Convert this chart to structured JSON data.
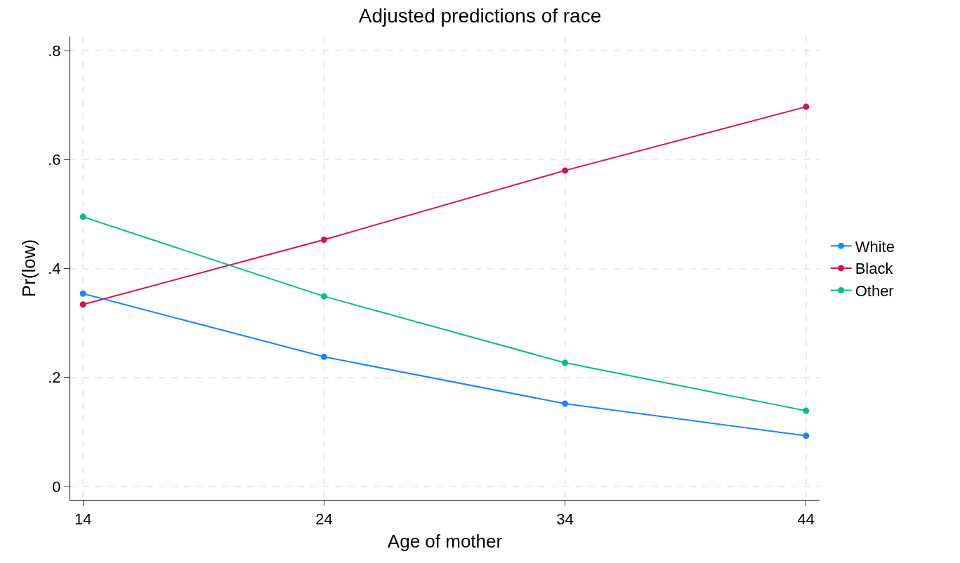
{
  "chart_data": {
    "type": "line",
    "title": "Adjusted predictions of race",
    "xlabel": "Age of mother",
    "ylabel": "Pr(low)",
    "x": [
      14,
      24,
      34,
      44
    ],
    "series": [
      {
        "name": "White",
        "color": "#1a85ff",
        "values": [
          0.354,
          0.238,
          0.152,
          0.093
        ]
      },
      {
        "name": "Black",
        "color": "#d41159",
        "values": [
          0.334,
          0.453,
          0.58,
          0.697
        ]
      },
      {
        "name": "Other",
        "color": "#00bf7f",
        "values": [
          0.495,
          0.349,
          0.227,
          0.139
        ]
      }
    ],
    "xlim": [
      13.47,
      44.56
    ],
    "xticks": [
      14,
      24,
      34,
      44
    ],
    "ylim": [
      -0.0245,
      0.826
    ],
    "yticks": [
      {
        "value": 0,
        "label": "0"
      },
      {
        "value": 0.2,
        "label": ".2"
      },
      {
        "value": 0.4,
        "label": ".4"
      },
      {
        "value": 0.6,
        "label": ".6"
      },
      {
        "value": 0.8,
        "label": ".8"
      }
    ],
    "grid": true,
    "legend": "right",
    "marker": "circle",
    "line_style": "solid"
  }
}
